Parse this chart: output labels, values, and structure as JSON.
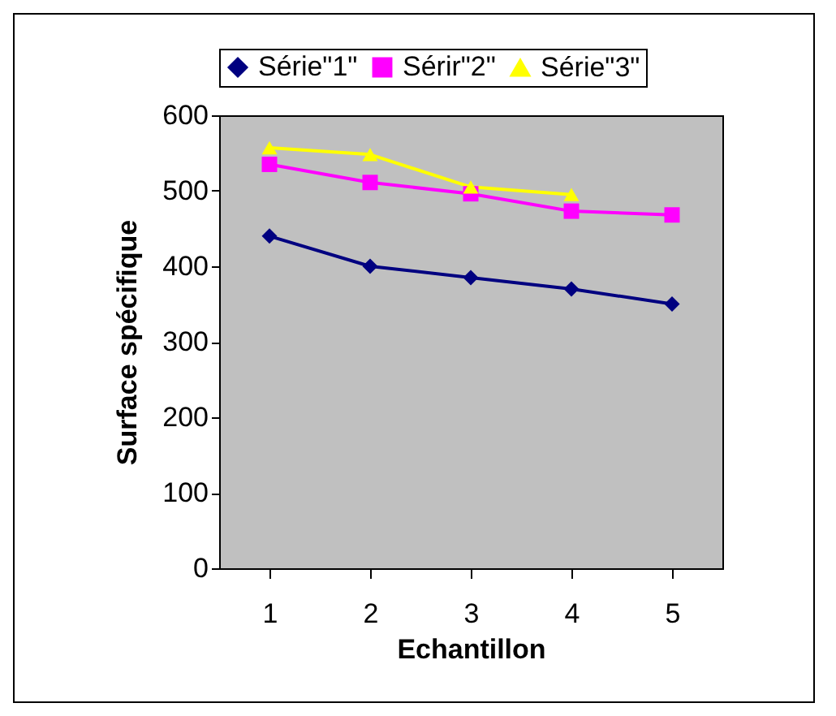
{
  "chart_data": {
    "type": "line",
    "xlabel": "Echantillon",
    "ylabel": "Surface spécifique",
    "categories": [
      "1",
      "2",
      "3",
      "4",
      "5"
    ],
    "ylim": [
      0,
      600
    ],
    "yticks": [
      0,
      100,
      200,
      300,
      400,
      500,
      600
    ],
    "grid": false,
    "legend": "top",
    "line_style": "solid",
    "series": [
      {
        "name": "Série\"1\"",
        "color": "#000080",
        "marker": "diamond",
        "values": [
          440,
          400,
          385,
          370,
          350
        ]
      },
      {
        "name": "Sérir\"2\"",
        "color": "#ff00ff",
        "marker": "square",
        "values": [
          535,
          511,
          496,
          473,
          468
        ]
      },
      {
        "name": "Série\"3\"",
        "color": "#ffff00",
        "marker": "triangle",
        "values": [
          557,
          548,
          505,
          495,
          null
        ]
      }
    ]
  }
}
